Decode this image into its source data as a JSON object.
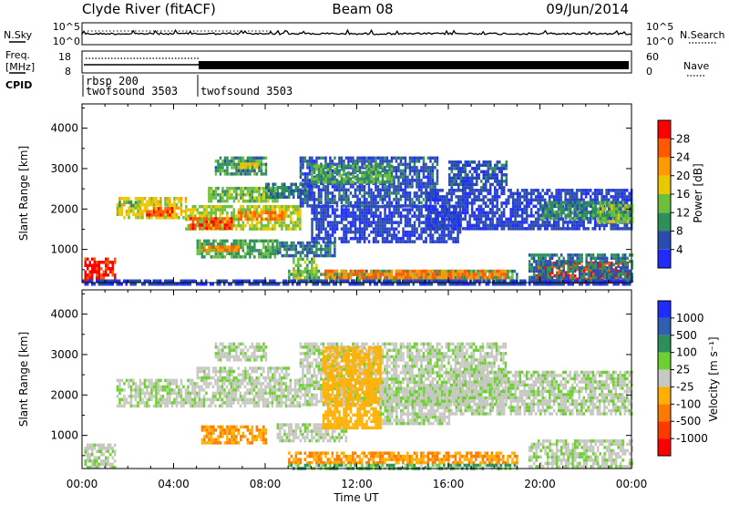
{
  "header": {
    "station": "Clyde River (fitACF)",
    "beam": "Beam 08",
    "date": "09/Jun/2014"
  },
  "noise_panel": {
    "left_label": "N.Sky",
    "right_label": "N.Search",
    "left_ticks": [
      "10^5",
      "10^0"
    ],
    "right_ticks": [
      "10^5",
      "10^0"
    ]
  },
  "freq_panel": {
    "left_label_1": "Freq.",
    "left_label_2": "[MHz]",
    "left_ticks": [
      "18",
      "8"
    ],
    "right_label": "Nave",
    "right_ticks": [
      "60",
      "0"
    ]
  },
  "cpid_panel": {
    "label": "CPID",
    "segments": [
      {
        "line1": "rbsp 200",
        "line2": "twofsound 3503",
        "start": "00:00"
      },
      {
        "line1": "",
        "line2": "twofsound 3503",
        "start": "05:00"
      }
    ]
  },
  "chart_data": [
    {
      "type": "heatmap",
      "title": "",
      "xlabel": "",
      "ylabel": "Slant Range [km]",
      "x_ticks": [
        "00:00",
        "04:00",
        "08:00",
        "12:00",
        "16:00",
        "20:00",
        "00:00"
      ],
      "xlim_hours": [
        0,
        24
      ],
      "y_ticks": [
        1000,
        2000,
        3000,
        4000
      ],
      "ylim": [
        180,
        4600
      ],
      "colorbar": {
        "label": "Power [dB]",
        "ticks": [
          4,
          8,
          12,
          16,
          20,
          24,
          28
        ],
        "range": [
          0,
          30
        ],
        "colors": [
          "#1f2bff",
          "#2a4cb0",
          "#2e8f5a",
          "#6cbf3c",
          "#e8c800",
          "#ff9a00",
          "#ff5a00",
          "#ff0000"
        ]
      },
      "regions": [
        {
          "t0": 0.1,
          "t1": 1.4,
          "r0": 200,
          "r1": 800,
          "v": 29
        },
        {
          "t0": 1.5,
          "t1": 4.5,
          "r0": 1800,
          "r1": 2300,
          "v": 18
        },
        {
          "t0": 2.8,
          "t1": 4.0,
          "r0": 1850,
          "r1": 2050,
          "v": 27
        },
        {
          "t0": 1.6,
          "t1": 2.4,
          "r0": 2050,
          "r1": 2200,
          "v": 12
        },
        {
          "t0": 4.5,
          "t1": 9.5,
          "r0": 1500,
          "r1": 2100,
          "v": 16
        },
        {
          "t0": 4.7,
          "t1": 6.5,
          "r0": 1550,
          "r1": 1800,
          "v": 27
        },
        {
          "t0": 6.8,
          "t1": 8.8,
          "r0": 1750,
          "r1": 1950,
          "v": 24
        },
        {
          "t0": 5.5,
          "t1": 8.5,
          "r0": 2200,
          "r1": 2550,
          "v": 14
        },
        {
          "t0": 5.8,
          "t1": 8.0,
          "r0": 2900,
          "r1": 3300,
          "v": 10
        },
        {
          "t0": 6.8,
          "t1": 7.6,
          "r0": 3000,
          "r1": 3150,
          "v": 18
        },
        {
          "t0": 5.0,
          "t1": 8.5,
          "r0": 800,
          "r1": 1250,
          "v": 12
        },
        {
          "t0": 5.2,
          "t1": 6.8,
          "r0": 950,
          "r1": 1100,
          "v": 24
        },
        {
          "t0": 8.0,
          "t1": 10.0,
          "r0": 2300,
          "r1": 2650,
          "v": 9
        },
        {
          "t0": 8.5,
          "t1": 11.0,
          "r0": 850,
          "r1": 1200,
          "v": 8
        },
        {
          "t0": 9.5,
          "t1": 15.5,
          "r0": 2100,
          "r1": 3300,
          "v": 6
        },
        {
          "t0": 10.0,
          "t1": 13.5,
          "r0": 2700,
          "r1": 3100,
          "v": 12
        },
        {
          "t0": 10.0,
          "t1": 16.5,
          "r0": 1200,
          "r1": 2100,
          "v": 5
        },
        {
          "t0": 9.0,
          "t1": 19.0,
          "r0": 250,
          "r1": 500,
          "v": 10
        },
        {
          "t0": 10.5,
          "t1": 18.5,
          "r0": 300,
          "r1": 500,
          "v": 24
        },
        {
          "t0": 9.2,
          "t1": 10.2,
          "r0": 300,
          "r1": 800,
          "v": 14
        },
        {
          "t0": 15.0,
          "t1": 24.0,
          "r0": 1500,
          "r1": 2500,
          "v": 5
        },
        {
          "t0": 16.0,
          "t1": 18.5,
          "r0": 2500,
          "r1": 3200,
          "v": 6
        },
        {
          "t0": 20.0,
          "t1": 23.5,
          "r0": 1800,
          "r1": 2200,
          "v": 10
        },
        {
          "t0": 22.5,
          "t1": 24.0,
          "r0": 1700,
          "r1": 2200,
          "v": 14
        },
        {
          "t0": 19.8,
          "t1": 23.8,
          "r0": 200,
          "r1": 700,
          "v": 28
        },
        {
          "t0": 19.5,
          "t1": 24.0,
          "r0": 200,
          "r1": 900,
          "v": 8
        },
        {
          "t0": 0.0,
          "t1": 24.0,
          "r0": 180,
          "r1": 260,
          "v": 5
        }
      ]
    },
    {
      "type": "heatmap",
      "title": "",
      "xlabel": "Time UT",
      "ylabel": "Slant Range [km]",
      "x_ticks": [
        "00:00",
        "04:00",
        "08:00",
        "12:00",
        "16:00",
        "20:00",
        "00:00"
      ],
      "xlim_hours": [
        0,
        24
      ],
      "y_ticks": [
        1000,
        2000,
        3000,
        4000
      ],
      "ylim": [
        180,
        4600
      ],
      "colorbar": {
        "label": "Velocity [m s⁻¹]",
        "ticks": [
          1000,
          500,
          100,
          25,
          -25,
          -100,
          -500,
          -1000
        ],
        "colors": [
          "#1f2bff",
          "#2e5fb0",
          "#2e8f5a",
          "#6cd030",
          "#c8c8c2",
          "#ffb000",
          "#ff7a00",
          "#ff3a00",
          "#ff0000"
        ]
      },
      "regions": [
        {
          "t0": 0.1,
          "t1": 1.4,
          "r0": 200,
          "r1": 800,
          "v": 0
        },
        {
          "t0": 1.5,
          "t1": 9.5,
          "r0": 1700,
          "r1": 2400,
          "v": 0
        },
        {
          "t0": 5.0,
          "t1": 9.0,
          "r0": 2400,
          "r1": 2700,
          "v": 0
        },
        {
          "t0": 5.8,
          "t1": 8.0,
          "r0": 2900,
          "r1": 3300,
          "v": 0
        },
        {
          "t0": 5.2,
          "t1": 8.0,
          "r0": 800,
          "r1": 1250,
          "v": -300
        },
        {
          "t0": 8.5,
          "t1": 11.5,
          "r0": 850,
          "r1": 1300,
          "v": 0
        },
        {
          "t0": 9.5,
          "t1": 18.5,
          "r0": 1800,
          "r1": 3300,
          "v": 0
        },
        {
          "t0": 10.5,
          "t1": 13.0,
          "r0": 1200,
          "r1": 3200,
          "v": -200
        },
        {
          "t0": 13.0,
          "t1": 16.0,
          "r0": 1300,
          "r1": 2200,
          "v": 0
        },
        {
          "t0": 9.0,
          "t1": 19.0,
          "r0": 300,
          "r1": 600,
          "v": -300
        },
        {
          "t0": 9.0,
          "t1": 19.0,
          "r0": 200,
          "r1": 300,
          "v": 60
        },
        {
          "t0": 16.0,
          "t1": 24.0,
          "r0": 1500,
          "r1": 2600,
          "v": 0
        },
        {
          "t0": 19.5,
          "t1": 24.0,
          "r0": 200,
          "r1": 900,
          "v": 0
        }
      ]
    }
  ]
}
